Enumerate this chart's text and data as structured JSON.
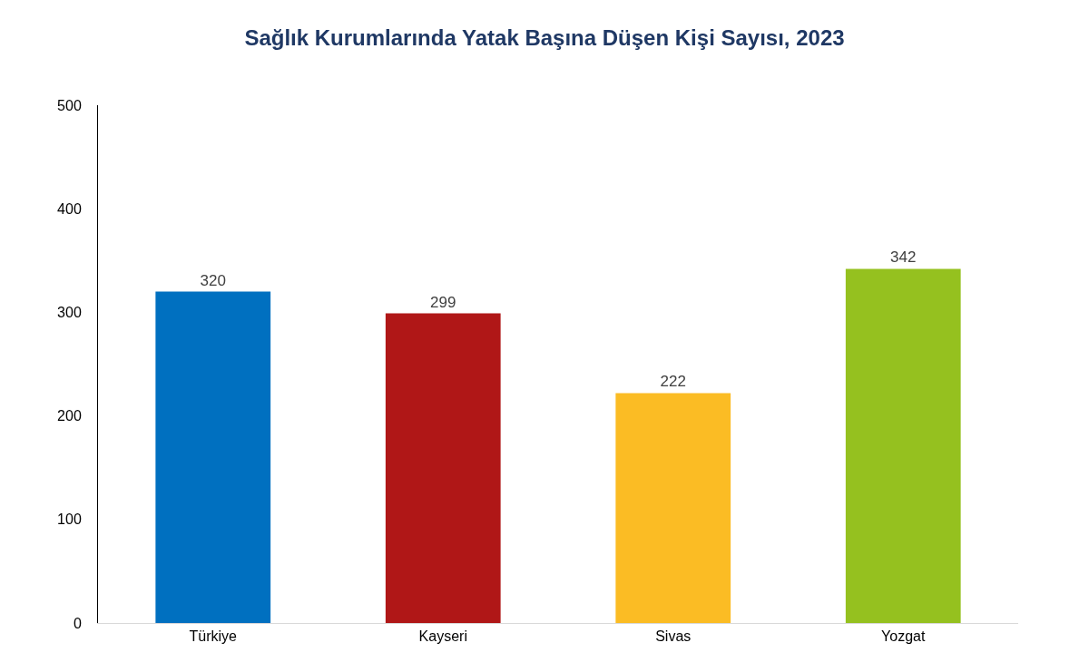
{
  "chart_data": {
    "type": "bar",
    "title": "Sağlık Kurumlarında Yatak Başına Düşen Kişi Sayısı, 2023",
    "categories": [
      "Türkiye",
      "Kayseri",
      "Sivas",
      "Yozgat"
    ],
    "values": [
      320,
      299,
      222,
      342
    ],
    "colors": [
      "#0070c0",
      "#b01717",
      "#fbbc24",
      "#95c11f"
    ],
    "ylim": [
      0,
      500
    ],
    "yticks": [
      0,
      100,
      200,
      300,
      400,
      500
    ],
    "grid": false,
    "data_labels": true
  }
}
